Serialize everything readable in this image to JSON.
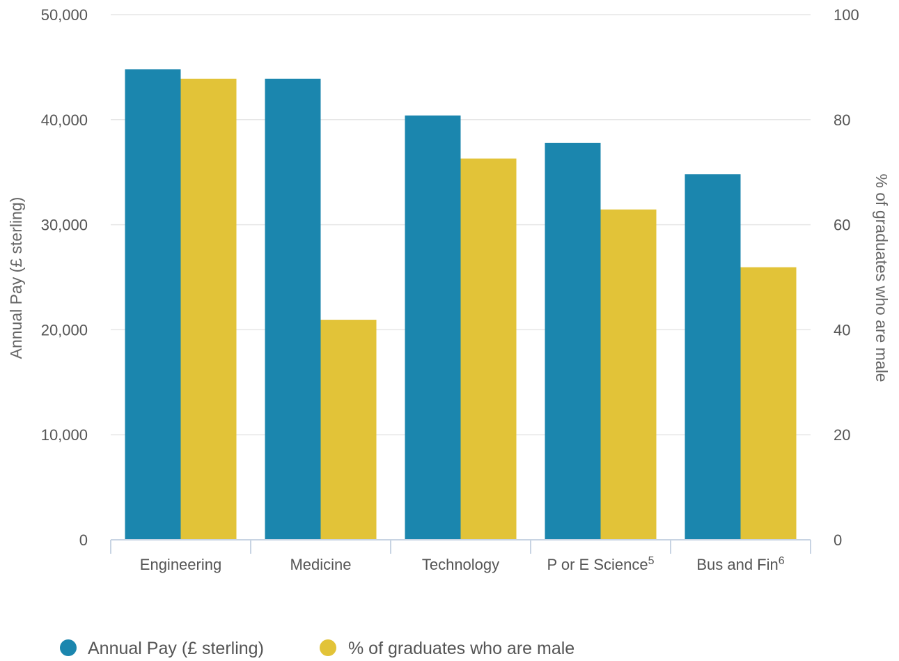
{
  "chart_data": {
    "type": "bar",
    "categories": [
      "Engineering",
      "Medicine",
      "Technology",
      "P or E Science",
      "Bus and Fin"
    ],
    "category_superscripts": [
      "",
      "",
      "",
      "5",
      "6"
    ],
    "series": [
      {
        "name": "Annual Pay (£ sterling)",
        "axis": "left",
        "color": "#1b86ae",
        "values": [
          44800,
          43900,
          40400,
          37800,
          34800
        ]
      },
      {
        "name": "% of graduates who are male",
        "axis": "right",
        "color": "#e2c338",
        "values": [
          87.8,
          41.9,
          72.6,
          62.9,
          51.9
        ]
      }
    ],
    "left_axis": {
      "title": "Annual Pay (£ sterling)",
      "range": [
        0,
        50000
      ],
      "ticks": [
        0,
        10000,
        20000,
        30000,
        40000,
        50000
      ],
      "tick_labels": [
        "0",
        "10,000",
        "20,000",
        "30,000",
        "40,000",
        "50,000"
      ]
    },
    "right_axis": {
      "title": "% of graduates who are male",
      "range": [
        0,
        100
      ],
      "ticks": [
        0,
        20,
        40,
        60,
        80,
        100
      ],
      "tick_labels": [
        "0",
        "20",
        "40",
        "60",
        "80",
        "100"
      ]
    },
    "grid": true,
    "legend_position": "bottom-left"
  }
}
